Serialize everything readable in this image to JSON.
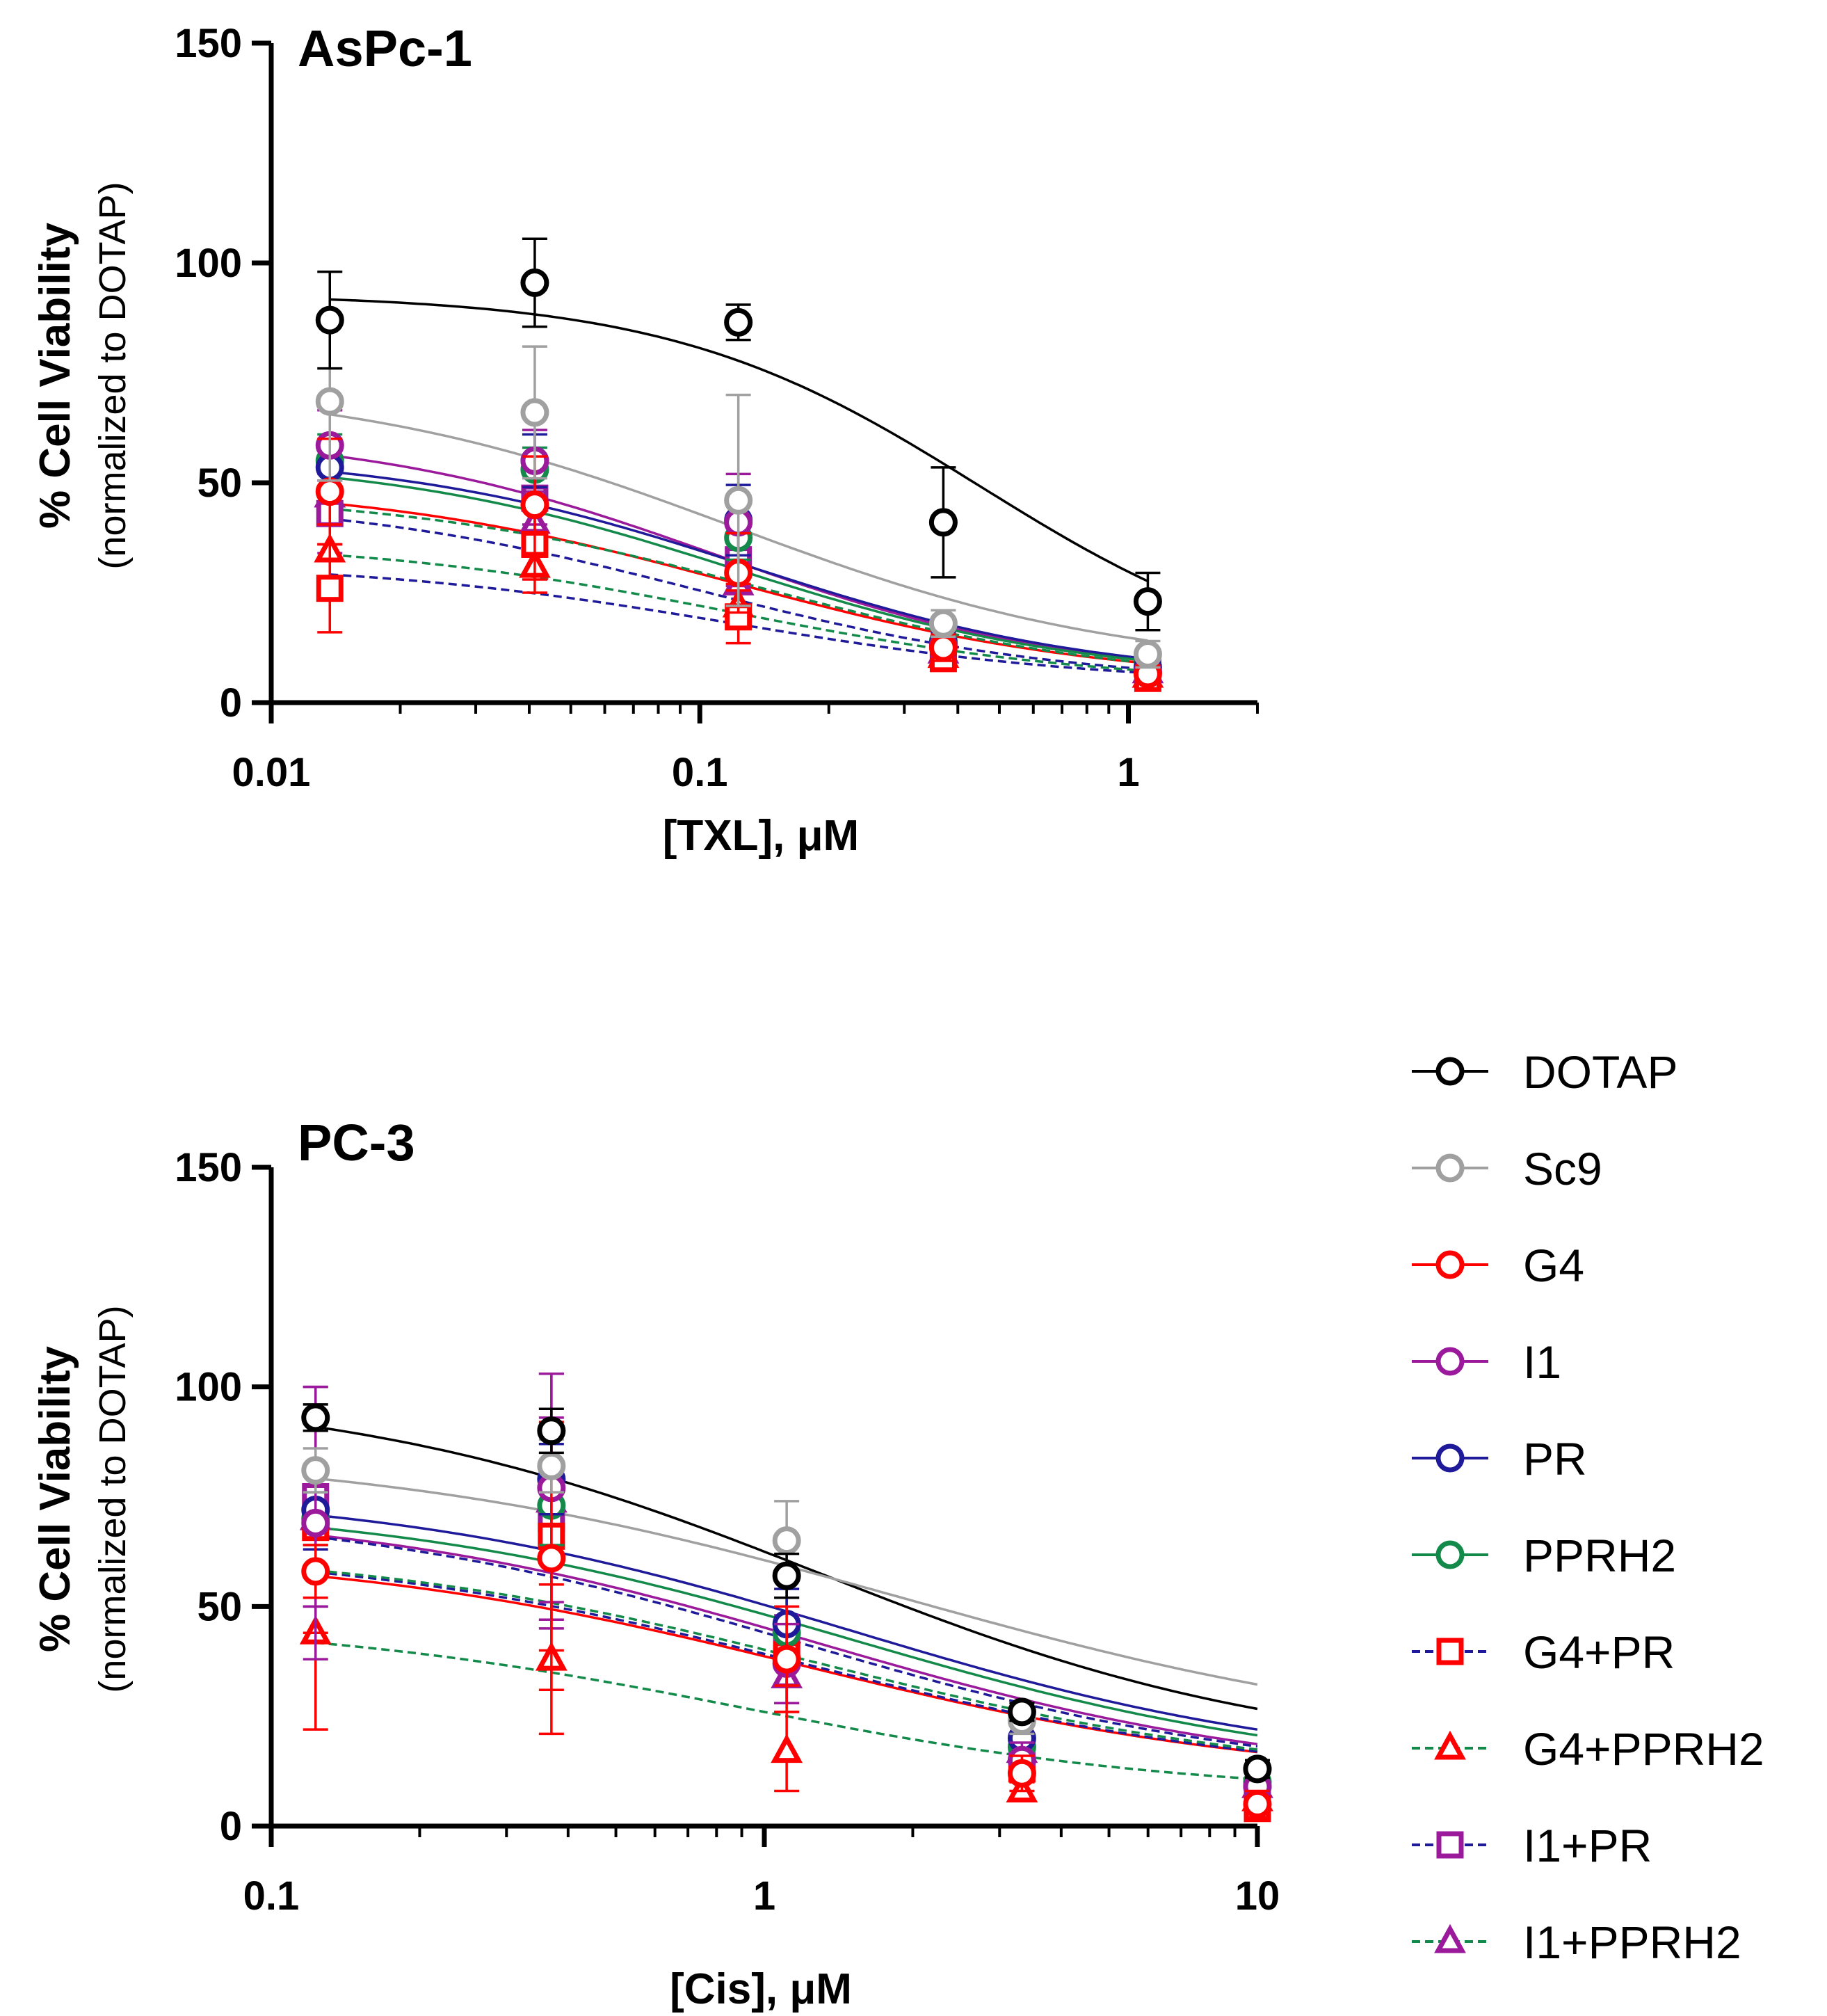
{
  "legend": {
    "entries": [
      {
        "name": "DOTAP",
        "color": "#000000",
        "marker": "circle",
        "line": "solid"
      },
      {
        "name": "Sc9",
        "color": "#a0a0a0",
        "marker": "circle",
        "line": "solid"
      },
      {
        "name": "G4",
        "color": "#ff0000",
        "marker": "circle",
        "line": "solid"
      },
      {
        "name": "I1",
        "color": "#9b1a9b",
        "marker": "circle",
        "line": "solid"
      },
      {
        "name": "PR",
        "color": "#1f1a99",
        "marker": "circle",
        "line": "solid"
      },
      {
        "name": "PPRH2",
        "color": "#138a4a",
        "marker": "circle",
        "line": "solid"
      },
      {
        "name": "G4+PR",
        "color": "#ff0000",
        "line_color": "#1f1a99",
        "marker": "square",
        "line": "dashed"
      },
      {
        "name": "G4+PPRH2",
        "color": "#ff0000",
        "line_color": "#138a4a",
        "marker": "triangle",
        "line": "dashed"
      },
      {
        "name": "I1+PR",
        "color": "#9b1a9b",
        "line_color": "#1f1a99",
        "marker": "square",
        "line": "dashed"
      },
      {
        "name": "I1+PPRH2",
        "color": "#9b1a9b",
        "line_color": "#138a4a",
        "marker": "triangle",
        "line": "dashed"
      }
    ]
  },
  "chart_data": [
    {
      "type": "scatter",
      "title": "AsPc-1",
      "xlabel": "[TXL], μM",
      "ylabel": "% Cell Viability",
      "ylabel_sub": "(normalized to DOTAP)",
      "xscale": "log",
      "xlim": [
        0.01,
        2
      ],
      "ylim": [
        0,
        150
      ],
      "xticks": [
        {
          "value": 0.01,
          "label": "0.01"
        },
        {
          "value": 0.1,
          "label": "0.1"
        },
        {
          "value": 1,
          "label": "1"
        }
      ],
      "yticks": [
        {
          "value": 0,
          "label": "0"
        },
        {
          "value": 50,
          "label": "50"
        },
        {
          "value": 100,
          "label": "100"
        },
        {
          "value": 150,
          "label": "150"
        }
      ],
      "x": [
        0.0137,
        0.0412,
        0.123,
        0.37,
        1.11
      ],
      "series": [
        {
          "name": "DOTAP",
          "values": [
            87,
            95.5,
            86.5,
            41,
            23
          ],
          "errors": [
            11,
            10,
            4,
            12.5,
            6.5
          ],
          "curve": [
            93,
            5.5,
            0.45,
            1.2
          ]
        },
        {
          "name": "Sc9",
          "values": [
            68.5,
            66,
            46,
            18,
            11
          ],
          "errors": [
            18,
            15,
            24,
            3,
            3
          ],
          "curve": [
            73,
            7,
            0.12,
            0.95
          ]
        },
        {
          "name": "G4",
          "values": [
            48,
            45,
            29.5,
            12.5,
            6.5
          ],
          "errors": [
            12,
            11,
            9,
            3,
            2
          ],
          "curve": [
            50,
            4.5,
            0.12,
            1
          ]
        },
        {
          "name": "I1",
          "values": [
            58.5,
            55,
            41,
            13,
            7
          ],
          "errors": [
            8,
            7,
            11,
            2.5,
            2.5
          ],
          "curve": [
            62,
            5,
            0.11,
            1.05
          ]
        },
        {
          "name": "PR",
          "values": [
            53.5,
            55,
            41.5,
            13.5,
            8
          ],
          "errors": [
            5,
            6,
            8,
            2.5,
            2.5
          ],
          "curve": [
            57,
            5,
            0.13,
            1.05
          ]
        },
        {
          "name": "PPRH2",
          "values": [
            55,
            53,
            37.5,
            14,
            7
          ],
          "errors": [
            6,
            5,
            5,
            2.5,
            2.5
          ],
          "curve": [
            56,
            5,
            0.12,
            1.05
          ]
        },
        {
          "name": "G4+PR",
          "values": [
            26,
            36,
            19.5,
            10,
            5.5
          ],
          "errors": [
            10,
            8,
            6,
            2,
            2
          ],
          "curve": [
            47,
            4,
            0.1,
            1
          ]
        },
        {
          "name": "G4+PPRH2",
          "values": [
            34.5,
            31,
            22,
            10.5,
            6
          ],
          "errors": [
            6,
            6,
            5,
            2,
            2
          ],
          "curve": [
            37,
            4,
            0.12,
            1
          ]
        },
        {
          "name": "I1+PR",
          "values": [
            43,
            46.5,
            32.5,
            11,
            7
          ],
          "errors": [
            9,
            6,
            6,
            2,
            2.5
          ],
          "curve": [
            32,
            4,
            0.12,
            1
          ]
        },
        {
          "name": "I1+PPRH2",
          "values": [
            47,
            41,
            27,
            11.5,
            7
          ],
          "errors": [
            6,
            5,
            5,
            2,
            2
          ],
          "curve": [
            48,
            4,
            0.14,
            1
          ]
        }
      ]
    },
    {
      "type": "scatter",
      "title": "PC-3",
      "xlabel": "[Cis], μM",
      "ylabel": "% Cell Viability",
      "ylabel_sub": "(normalized to DOTAP)",
      "xscale": "log",
      "xlim": [
        0.1,
        10
      ],
      "ylim": [
        0,
        150
      ],
      "xticks": [
        {
          "value": 0.1,
          "label": "0.1"
        },
        {
          "value": 1,
          "label": "1"
        },
        {
          "value": 10,
          "label": "10"
        }
      ],
      "yticks": [
        {
          "value": 0,
          "label": "0"
        },
        {
          "value": 50,
          "label": "50"
        },
        {
          "value": 100,
          "label": "100"
        },
        {
          "value": 150,
          "label": "150"
        }
      ],
      "x": [
        0.123,
        0.37,
        1.11,
        3.33,
        10
      ],
      "series": [
        {
          "name": "DOTAP",
          "values": [
            93,
            90,
            57,
            26,
            13
          ],
          "errors": [
            3,
            5,
            5,
            2,
            2
          ],
          "curve": [
            100,
            15,
            1.3,
            0.9
          ]
        },
        {
          "name": "Sc9",
          "values": [
            81,
            82,
            65,
            24,
            13
          ],
          "errors": [
            5,
            6,
            9,
            3,
            2
          ],
          "curve": [
            86,
            18,
            1.9,
            0.8
          ]
        },
        {
          "name": "G4",
          "values": [
            58,
            61,
            38,
            12,
            5
          ],
          "errors": [
            6,
            30,
            12,
            4,
            3
          ],
          "curve": [
            63,
            10,
            1.2,
            0.9
          ]
        },
        {
          "name": "I1",
          "values": [
            69,
            77,
            37,
            15,
            9
          ],
          "errors": [
            31,
            26,
            9,
            4,
            2
          ],
          "curve": [
            73,
            10,
            1.3,
            0.9
          ]
        },
        {
          "name": "PR",
          "values": [
            72,
            79,
            46,
            20,
            9
          ],
          "errors": [
            9,
            8,
            8,
            4,
            2
          ],
          "curve": [
            77,
            12,
            1.5,
            0.9
          ]
        },
        {
          "name": "PPRH2",
          "values": [
            70,
            73,
            44,
            18,
            10
          ],
          "errors": [
            6,
            9,
            8,
            3,
            2
          ],
          "curve": [
            74,
            11,
            1.5,
            0.9
          ]
        },
        {
          "name": "G4+PR",
          "values": [
            68,
            66,
            39,
            13,
            4
          ],
          "errors": [
            24,
            26,
            7,
            3,
            2
          ],
          "curve": [
            64,
            10,
            1.2,
            0.9
          ]
        },
        {
          "name": "G4+PPRH2",
          "values": [
            44,
            38,
            17,
            8,
            6
          ],
          "errors": [
            22,
            17,
            9,
            2,
            2
          ],
          "curve": [
            47,
            7,
            0.9,
            0.95
          ]
        },
        {
          "name": "I1+PR",
          "values": [
            75,
            70,
            40,
            14,
            8
          ],
          "errors": [
            25,
            23,
            8,
            3,
            2
          ],
          "curve": [
            73,
            10,
            1.2,
            0.9
          ]
        },
        {
          "name": "I1+PPRH2",
          "values": [
            70,
            74,
            34,
            17,
            9
          ],
          "errors": [
            20,
            29,
            6,
            3,
            2
          ],
          "curve": [
            64,
            10,
            1.3,
            0.9
          ]
        }
      ]
    }
  ]
}
